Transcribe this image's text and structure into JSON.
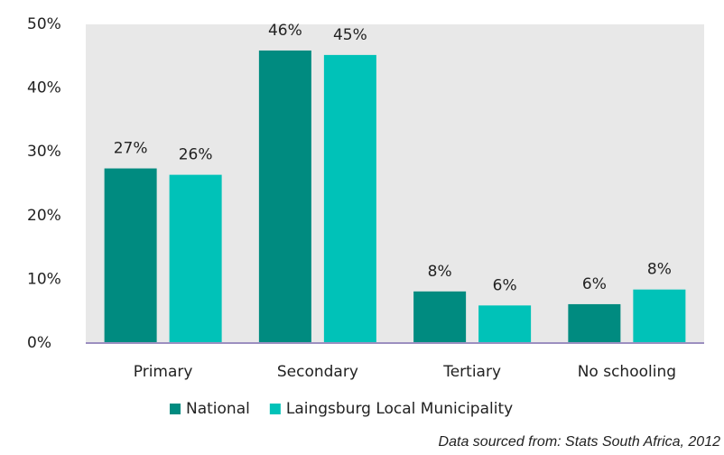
{
  "chart_data": {
    "type": "bar",
    "categories": [
      "Primary",
      "Secondary",
      "Tertiary",
      "No schooling"
    ],
    "series": [
      {
        "name": "National",
        "color": "#008b80",
        "values": [
          27.4,
          45.9,
          8.1,
          6.1
        ],
        "value_labels": [
          "27%",
          "46%",
          "8%",
          "6%"
        ]
      },
      {
        "name": "Laingsburg Local Municipality",
        "color": "#00c2b8",
        "values": [
          26.4,
          45.2,
          5.9,
          8.4
        ],
        "value_labels": [
          "26%",
          "45%",
          "6%",
          "8%"
        ]
      }
    ],
    "ylim": [
      0,
      50
    ],
    "yticks": [
      {
        "value": 0,
        "label": "0%"
      },
      {
        "value": 10,
        "label": "10%"
      },
      {
        "value": 20,
        "label": "20%"
      },
      {
        "value": 30,
        "label": "30%"
      },
      {
        "value": 40,
        "label": "40%"
      },
      {
        "value": 50,
        "label": "50%"
      }
    ],
    "legend": "bottom",
    "source": "Data sourced from: Stats South Africa, 2012"
  }
}
